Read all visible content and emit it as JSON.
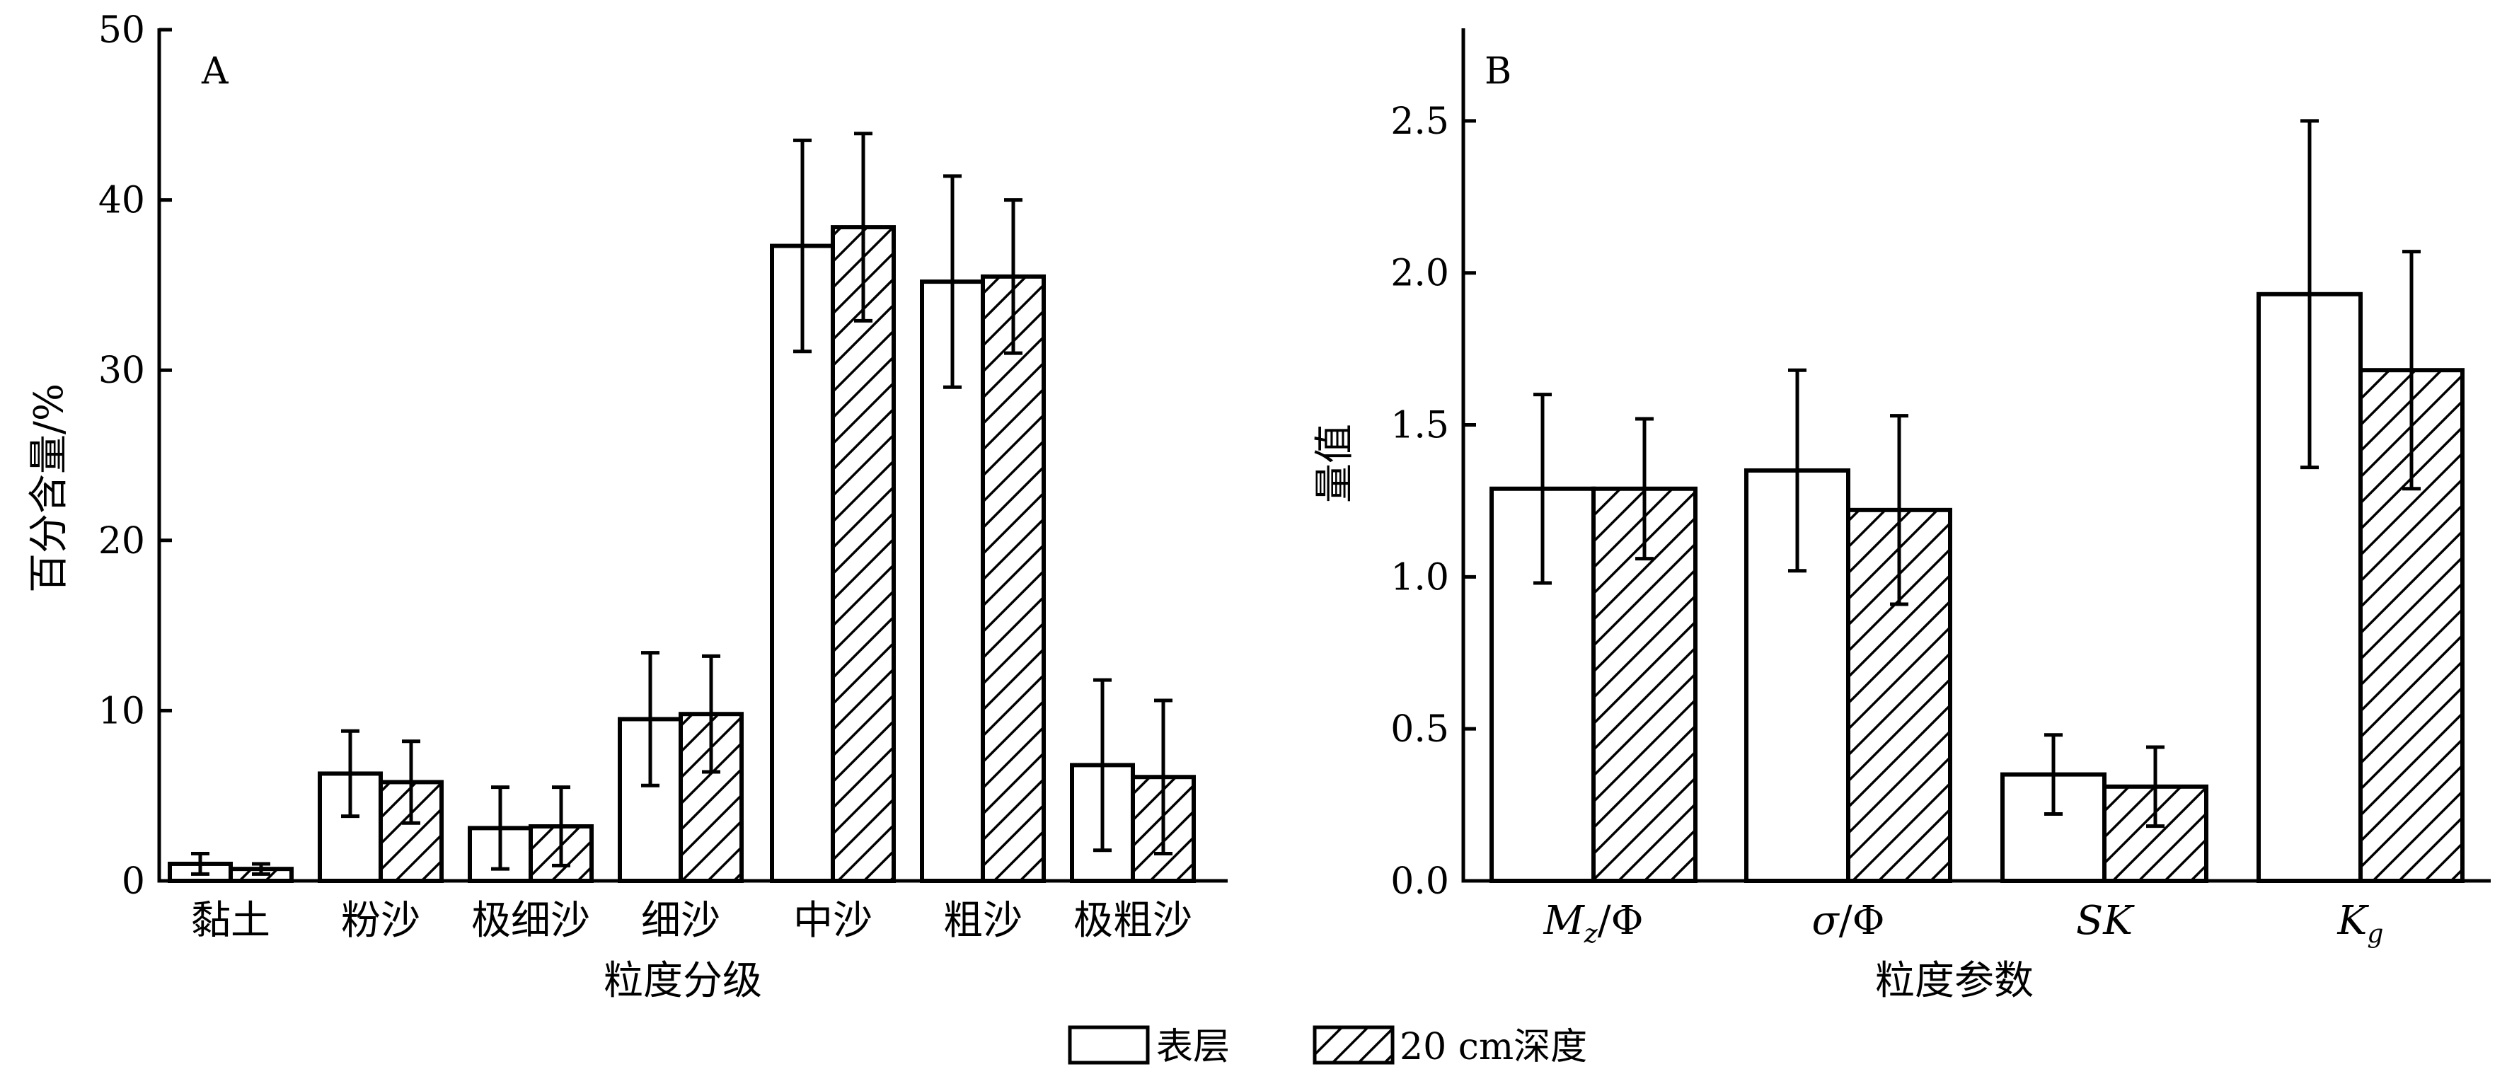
{
  "legend": {
    "items": [
      {
        "label": "表层",
        "pattern": "open"
      },
      {
        "label": "20 cm深度",
        "pattern": "hatched"
      }
    ]
  },
  "chart_data": [
    {
      "type": "bar",
      "panel_label": "A",
      "xlabel": "粒度分级",
      "ylabel": "百分含量/%",
      "ylim": [
        0,
        50
      ],
      "yticks": [
        0,
        10,
        20,
        30,
        40,
        50
      ],
      "categories": [
        "黏土",
        "粉沙",
        "极细沙",
        "细沙",
        "中沙",
        "粗沙",
        "极粗沙"
      ],
      "series": [
        {
          "name": "表层",
          "pattern": "open",
          "values": [
            1.0,
            6.3,
            3.1,
            9.5,
            37.3,
            35.2,
            6.8
          ],
          "errors": [
            0.6,
            2.5,
            2.4,
            3.9,
            6.2,
            6.2,
            5.0
          ]
        },
        {
          "name": "20 cm深度",
          "pattern": "hatched",
          "values": [
            0.7,
            5.8,
            3.2,
            9.8,
            38.4,
            35.5,
            6.1
          ],
          "errors": [
            0.3,
            2.4,
            2.3,
            3.4,
            5.5,
            4.5,
            4.5
          ]
        }
      ],
      "grid": false
    },
    {
      "type": "bar",
      "panel_label": "B",
      "xlabel": "粒度参数",
      "ylabel": "量值",
      "ylim": [
        0,
        2.8
      ],
      "yticks": [
        "0.0",
        "0.5",
        "1.0",
        "1.5",
        "2.0",
        "2.5"
      ],
      "categories": [
        {
          "main": "M",
          "sub": "z",
          "suffix": "/Φ",
          "italic": true
        },
        {
          "main": "σ",
          "sub": "",
          "suffix": "/Φ",
          "italic": true
        },
        {
          "main": "SK",
          "sub": "",
          "suffix": "",
          "italic": true
        },
        {
          "main": "K",
          "sub": "g",
          "suffix": "",
          "italic": true
        }
      ],
      "series": [
        {
          "name": "表层",
          "pattern": "open",
          "values": [
            1.29,
            1.35,
            0.35,
            1.93
          ],
          "errors": [
            0.31,
            0.33,
            0.13,
            0.57
          ]
        },
        {
          "name": "20 cm深度",
          "pattern": "hatched",
          "values": [
            1.29,
            1.22,
            0.31,
            1.68
          ],
          "errors": [
            0.23,
            0.31,
            0.13,
            0.39
          ]
        }
      ],
      "grid": false
    }
  ]
}
